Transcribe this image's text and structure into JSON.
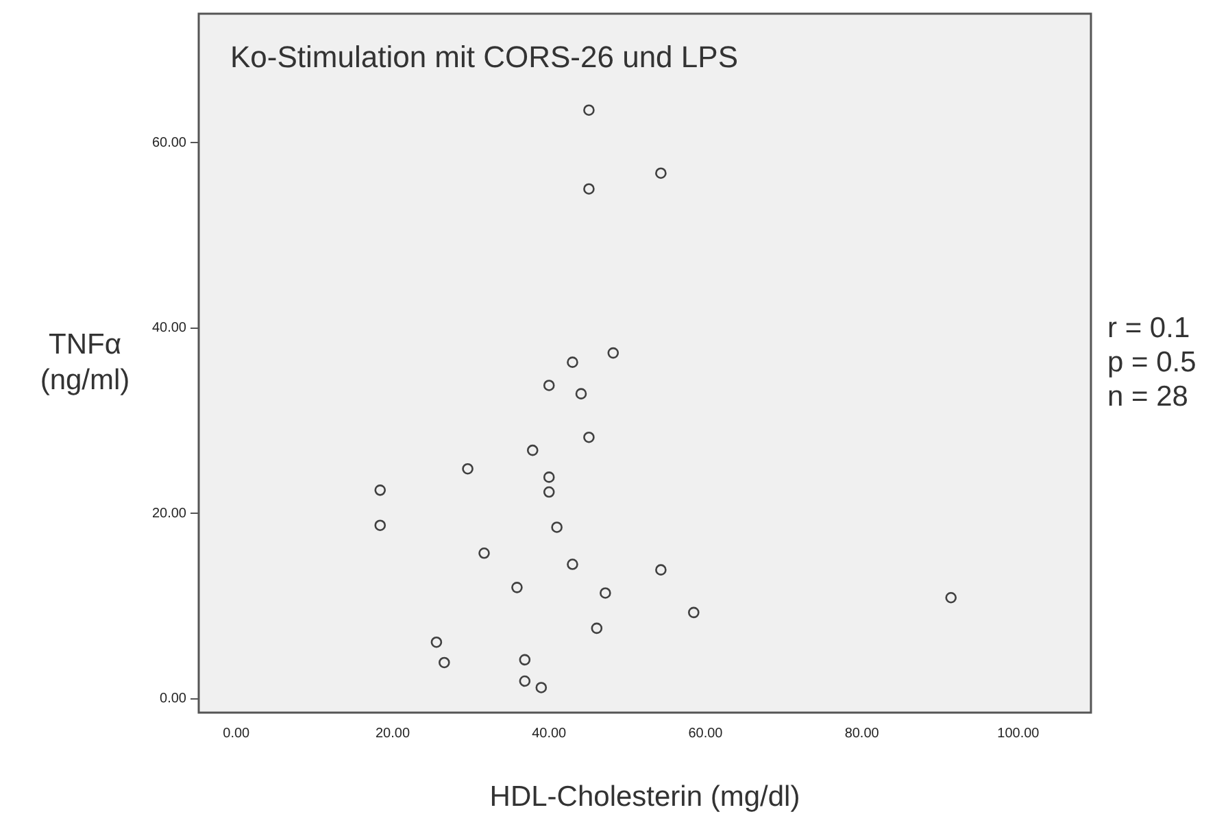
{
  "chart_data": {
    "type": "scatter",
    "title": "Ko-Stimulation mit CORS-26 und LPS",
    "xlabel": "HDL-Cholesterin (mg/dl)",
    "ylabel": "TNFα\n(ng/ml)",
    "annotations": [
      "r = 0.1",
      "p = 0.5",
      "n = 28"
    ],
    "marker": "circle",
    "grid": false,
    "legend": false,
    "xlim": [
      -4.8,
      109.3
    ],
    "ylim": [
      -1.5,
      73.9
    ],
    "xticks": [
      {
        "value": 0,
        "label": "0.00"
      },
      {
        "value": 20,
        "label": "20.00"
      },
      {
        "value": 40,
        "label": "40.00"
      },
      {
        "value": 60,
        "label": "60.00"
      },
      {
        "value": 80,
        "label": "80.00"
      },
      {
        "value": 100,
        "label": "100.00"
      }
    ],
    "yticks": [
      {
        "value": 0,
        "label": "0.00"
      },
      {
        "value": 20,
        "label": "20.00"
      },
      {
        "value": 40,
        "label": "40.00"
      },
      {
        "value": 60,
        "label": "60.00"
      }
    ],
    "series": [
      {
        "color": "#404040",
        "x": [
          45.1,
          54.3,
          45.1,
          48.2,
          43.0,
          40.0,
          44.1,
          45.1,
          37.9,
          29.6,
          40.0,
          40.0,
          18.4,
          18.4,
          41.0,
          31.7,
          43.0,
          54.3,
          35.9,
          47.2,
          58.5,
          46.1,
          25.6,
          26.6,
          36.9,
          36.9,
          39.0,
          91.4
        ],
        "values": [
          63.5,
          56.7,
          55.0,
          37.3,
          36.3,
          33.8,
          32.9,
          28.2,
          26.8,
          24.8,
          23.9,
          22.3,
          22.5,
          18.7,
          18.5,
          15.7,
          14.5,
          13.9,
          12.0,
          11.4,
          9.3,
          7.6,
          6.1,
          3.9,
          4.2,
          1.9,
          1.2,
          10.9
        ]
      }
    ]
  }
}
